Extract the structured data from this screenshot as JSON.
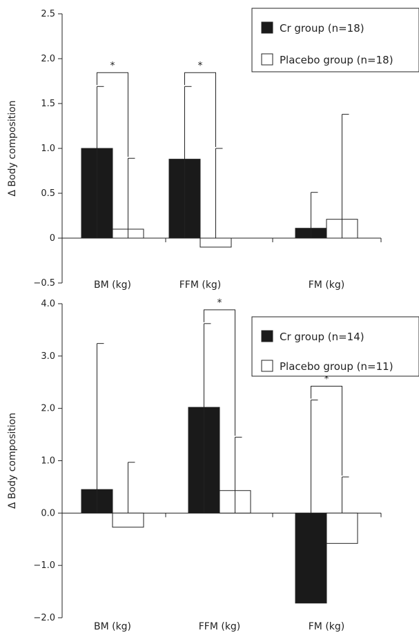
{
  "chart_data": [
    {
      "type": "bar",
      "categories": [
        "BM (kg)",
        "FFM (kg)",
        "FM (kg)"
      ],
      "ylabel": "Δ Body composition",
      "ylim": [
        -0.5,
        2.5
      ],
      "yticks": [
        "2.5",
        "2.0",
        "1.5",
        "1.0",
        "0.5",
        "0",
        "−0.5"
      ],
      "yticks_values": [
        2.5,
        2.0,
        1.5,
        1.0,
        0.5,
        0,
        -0.5
      ],
      "legend_placement": "top-right",
      "grid": false,
      "series": [
        {
          "name": "Cr group (n=18)",
          "color": "#1a1a1a",
          "values": [
            1.0,
            0.88,
            0.11
          ],
          "error_upper": [
            1.69,
            1.69,
            0.51
          ]
        },
        {
          "name": "Placebo group (n=18)",
          "color": "#ffffff",
          "values": [
            0.1,
            -0.1,
            0.21
          ],
          "error_upper": [
            0.89,
            1.0,
            1.38
          ]
        }
      ],
      "significance": [
        {
          "category_index": 0,
          "label": "*"
        },
        {
          "category_index": 1,
          "label": "*"
        }
      ]
    },
    {
      "type": "bar",
      "categories": [
        "BM (kg)",
        "FFM (kg)",
        "FM (kg)"
      ],
      "ylabel": "Δ Body composition",
      "ylim": [
        -2.0,
        4.0
      ],
      "yticks": [
        "4.0",
        "3.0",
        "2.0",
        "1.0",
        "0.0",
        "−1.0",
        "−2.0"
      ],
      "yticks_values": [
        4.0,
        3.0,
        2.0,
        1.0,
        0.0,
        -1.0,
        -2.0
      ],
      "legend_placement": "top-right",
      "grid": false,
      "series": [
        {
          "name": "Cr group (n=14)",
          "color": "#1a1a1a",
          "values": [
            0.45,
            2.02,
            -1.72
          ],
          "error_upper": [
            3.24,
            3.62,
            2.16
          ]
        },
        {
          "name": "Placebo group (n=11)",
          "color": "#ffffff",
          "values": [
            -0.27,
            0.43,
            -0.58
          ],
          "error_upper": [
            0.97,
            1.45,
            0.69
          ]
        }
      ],
      "significance": [
        {
          "category_index": 1,
          "label": "*"
        },
        {
          "category_index": 2,
          "label": "*"
        }
      ]
    }
  ]
}
